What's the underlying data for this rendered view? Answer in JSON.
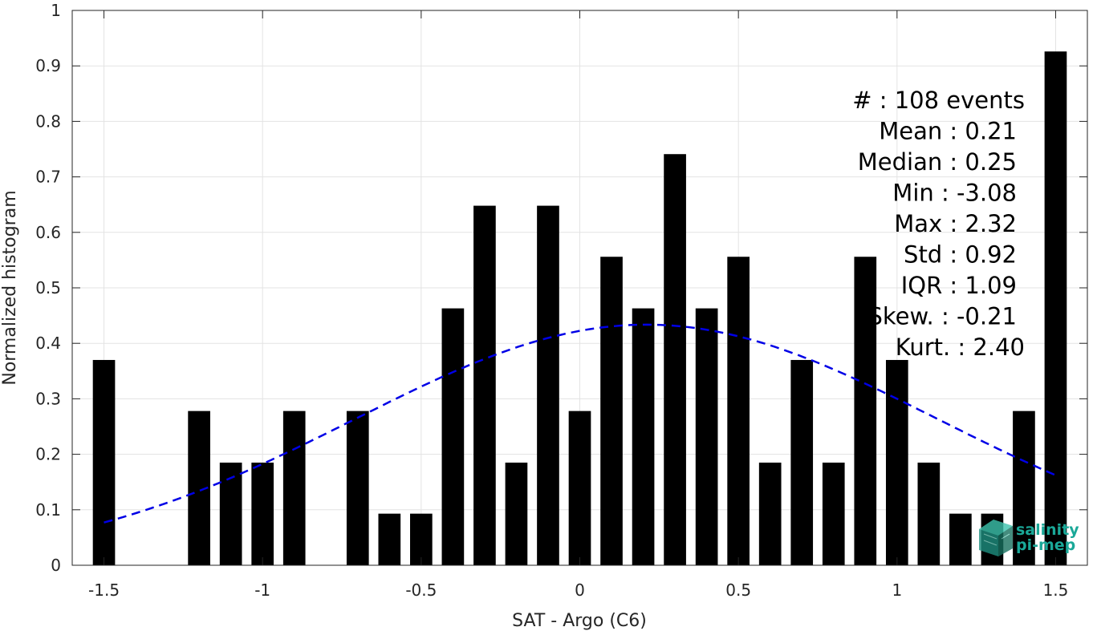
{
  "chart_data": {
    "type": "bar",
    "xlabel": "SAT - Argo (C6)",
    "ylabel": "Normalized histogram",
    "xlim": [
      -1.6,
      1.6
    ],
    "ylim": [
      0,
      1
    ],
    "xticks": [
      -1.5,
      -1,
      -0.5,
      0,
      0.5,
      1,
      1.5
    ],
    "xtick_labels": [
      "-1.5",
      "-1",
      "-0.5",
      "0",
      "0.5",
      "1",
      "1.5"
    ],
    "yticks": [
      0,
      0.1,
      0.2,
      0.3,
      0.4,
      0.5,
      0.6,
      0.7,
      0.8,
      0.9,
      1
    ],
    "ytick_labels": [
      "0",
      "0.1",
      "0.2",
      "0.3",
      "0.4",
      "0.5",
      "0.6",
      "0.7",
      "0.8",
      "0.9",
      "1"
    ],
    "grid": true,
    "bar_width": 0.07,
    "bar_color": "#000000",
    "bars": {
      "x": [
        -1.5,
        -1.4,
        -1.3,
        -1.2,
        -1.1,
        -1.0,
        -0.9,
        -0.8,
        -0.7,
        -0.6,
        -0.5,
        -0.4,
        -0.3,
        -0.2,
        -0.1,
        0.0,
        0.1,
        0.2,
        0.3,
        0.4,
        0.5,
        0.6,
        0.7,
        0.8,
        0.9,
        1.0,
        1.1,
        1.2,
        1.3,
        1.4,
        1.5
      ],
      "values": [
        0.37,
        0,
        0,
        0.278,
        0.185,
        0.185,
        0.278,
        0,
        0.278,
        0.093,
        0.093,
        0.463,
        0.648,
        0.185,
        0.648,
        0.278,
        0.556,
        0.463,
        0.741,
        0.463,
        0.556,
        0.185,
        0.37,
        0.185,
        0.556,
        0.37,
        0.185,
        0.093,
        0.093,
        0.278,
        0.926
      ]
    },
    "fit": {
      "type": "gaussian",
      "style": "dashed",
      "color": "#0000e6",
      "mean": 0.21,
      "std": 0.92,
      "x_range": [
        -1.5,
        1.5
      ]
    },
    "stats": [
      "#  : 108 events",
      "Mean : 0.21",
      "Median : 0.25",
      "Min : -3.08",
      "Max : 2.32",
      "Std : 0.92",
      "IQR : 1.09",
      "Skew. : -0.21",
      "Kurt. : 2.40"
    ]
  },
  "logo": {
    "line1": "salinity",
    "line2": "pi-mep",
    "color": "#1aa898"
  }
}
